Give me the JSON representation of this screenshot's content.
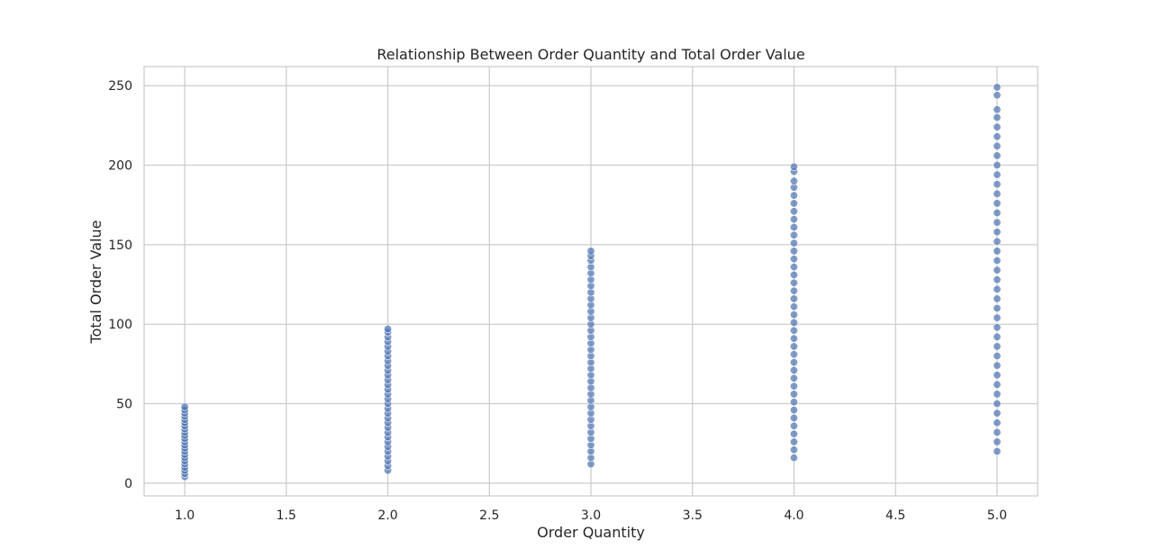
{
  "chart_data": {
    "type": "scatter",
    "title": "Relationship Between Order Quantity and Total Order Value",
    "xlabel": "Order Quantity",
    "ylabel": "Total Order Value",
    "xlim": [
      0.8,
      5.2
    ],
    "ylim": [
      -8,
      262
    ],
    "x_ticks": [
      1.0,
      1.5,
      2.0,
      2.5,
      3.0,
      3.5,
      4.0,
      4.5,
      5.0
    ],
    "x_tick_labels": [
      "1.0",
      "1.5",
      "2.0",
      "2.5",
      "3.0",
      "3.5",
      "4.0",
      "4.5",
      "5.0"
    ],
    "y_ticks": [
      0,
      50,
      100,
      150,
      200,
      250
    ],
    "y_tick_labels": [
      "0",
      "50",
      "100",
      "150",
      "200",
      "250"
    ],
    "grid": true,
    "marker_color": "#4c72b0",
    "marker_alpha": 0.7,
    "points": [
      {
        "x": 1,
        "y": 4
      },
      {
        "x": 1,
        "y": 6
      },
      {
        "x": 1,
        "y": 8
      },
      {
        "x": 1,
        "y": 10
      },
      {
        "x": 1,
        "y": 12
      },
      {
        "x": 1,
        "y": 14
      },
      {
        "x": 1,
        "y": 16
      },
      {
        "x": 1,
        "y": 18
      },
      {
        "x": 1,
        "y": 20
      },
      {
        "x": 1,
        "y": 22
      },
      {
        "x": 1,
        "y": 24
      },
      {
        "x": 1,
        "y": 26
      },
      {
        "x": 1,
        "y": 28
      },
      {
        "x": 1,
        "y": 30
      },
      {
        "x": 1,
        "y": 32
      },
      {
        "x": 1,
        "y": 34
      },
      {
        "x": 1,
        "y": 36
      },
      {
        "x": 1,
        "y": 38
      },
      {
        "x": 1,
        "y": 40
      },
      {
        "x": 1,
        "y": 42
      },
      {
        "x": 1,
        "y": 44
      },
      {
        "x": 1,
        "y": 46
      },
      {
        "x": 1,
        "y": 48
      },
      {
        "x": 2,
        "y": 8
      },
      {
        "x": 2,
        "y": 11
      },
      {
        "x": 2,
        "y": 14
      },
      {
        "x": 2,
        "y": 17
      },
      {
        "x": 2,
        "y": 20
      },
      {
        "x": 2,
        "y": 23
      },
      {
        "x": 2,
        "y": 26
      },
      {
        "x": 2,
        "y": 29
      },
      {
        "x": 2,
        "y": 32
      },
      {
        "x": 2,
        "y": 35
      },
      {
        "x": 2,
        "y": 38
      },
      {
        "x": 2,
        "y": 41
      },
      {
        "x": 2,
        "y": 44
      },
      {
        "x": 2,
        "y": 47
      },
      {
        "x": 2,
        "y": 50
      },
      {
        "x": 2,
        "y": 53
      },
      {
        "x": 2,
        "y": 56
      },
      {
        "x": 2,
        "y": 59
      },
      {
        "x": 2,
        "y": 62
      },
      {
        "x": 2,
        "y": 65
      },
      {
        "x": 2,
        "y": 68
      },
      {
        "x": 2,
        "y": 71
      },
      {
        "x": 2,
        "y": 74
      },
      {
        "x": 2,
        "y": 77
      },
      {
        "x": 2,
        "y": 80
      },
      {
        "x": 2,
        "y": 83
      },
      {
        "x": 2,
        "y": 86
      },
      {
        "x": 2,
        "y": 89
      },
      {
        "x": 2,
        "y": 92
      },
      {
        "x": 2,
        "y": 95
      },
      {
        "x": 2,
        "y": 97
      },
      {
        "x": 3,
        "y": 12
      },
      {
        "x": 3,
        "y": 16
      },
      {
        "x": 3,
        "y": 20
      },
      {
        "x": 3,
        "y": 24
      },
      {
        "x": 3,
        "y": 28
      },
      {
        "x": 3,
        "y": 32
      },
      {
        "x": 3,
        "y": 36
      },
      {
        "x": 3,
        "y": 40
      },
      {
        "x": 3,
        "y": 44
      },
      {
        "x": 3,
        "y": 48
      },
      {
        "x": 3,
        "y": 52
      },
      {
        "x": 3,
        "y": 56
      },
      {
        "x": 3,
        "y": 60
      },
      {
        "x": 3,
        "y": 64
      },
      {
        "x": 3,
        "y": 68
      },
      {
        "x": 3,
        "y": 72
      },
      {
        "x": 3,
        "y": 76
      },
      {
        "x": 3,
        "y": 80
      },
      {
        "x": 3,
        "y": 84
      },
      {
        "x": 3,
        "y": 88
      },
      {
        "x": 3,
        "y": 92
      },
      {
        "x": 3,
        "y": 96
      },
      {
        "x": 3,
        "y": 100
      },
      {
        "x": 3,
        "y": 104
      },
      {
        "x": 3,
        "y": 108
      },
      {
        "x": 3,
        "y": 112
      },
      {
        "x": 3,
        "y": 116
      },
      {
        "x": 3,
        "y": 120
      },
      {
        "x": 3,
        "y": 124
      },
      {
        "x": 3,
        "y": 128
      },
      {
        "x": 3,
        "y": 132
      },
      {
        "x": 3,
        "y": 136
      },
      {
        "x": 3,
        "y": 140
      },
      {
        "x": 3,
        "y": 143
      },
      {
        "x": 3,
        "y": 146
      },
      {
        "x": 4,
        "y": 16
      },
      {
        "x": 4,
        "y": 21
      },
      {
        "x": 4,
        "y": 26
      },
      {
        "x": 4,
        "y": 31
      },
      {
        "x": 4,
        "y": 36
      },
      {
        "x": 4,
        "y": 41
      },
      {
        "x": 4,
        "y": 46
      },
      {
        "x": 4,
        "y": 51
      },
      {
        "x": 4,
        "y": 56
      },
      {
        "x": 4,
        "y": 61
      },
      {
        "x": 4,
        "y": 66
      },
      {
        "x": 4,
        "y": 71
      },
      {
        "x": 4,
        "y": 76
      },
      {
        "x": 4,
        "y": 81
      },
      {
        "x": 4,
        "y": 86
      },
      {
        "x": 4,
        "y": 91
      },
      {
        "x": 4,
        "y": 96
      },
      {
        "x": 4,
        "y": 101
      },
      {
        "x": 4,
        "y": 106
      },
      {
        "x": 4,
        "y": 111
      },
      {
        "x": 4,
        "y": 116
      },
      {
        "x": 4,
        "y": 121
      },
      {
        "x": 4,
        "y": 126
      },
      {
        "x": 4,
        "y": 131
      },
      {
        "x": 4,
        "y": 136
      },
      {
        "x": 4,
        "y": 141
      },
      {
        "x": 4,
        "y": 146
      },
      {
        "x": 4,
        "y": 151
      },
      {
        "x": 4,
        "y": 156
      },
      {
        "x": 4,
        "y": 161
      },
      {
        "x": 4,
        "y": 166
      },
      {
        "x": 4,
        "y": 171
      },
      {
        "x": 4,
        "y": 176
      },
      {
        "x": 4,
        "y": 181
      },
      {
        "x": 4,
        "y": 186
      },
      {
        "x": 4,
        "y": 190
      },
      {
        "x": 4,
        "y": 196
      },
      {
        "x": 4,
        "y": 199
      },
      {
        "x": 5,
        "y": 20
      },
      {
        "x": 5,
        "y": 26
      },
      {
        "x": 5,
        "y": 32
      },
      {
        "x": 5,
        "y": 38
      },
      {
        "x": 5,
        "y": 44
      },
      {
        "x": 5,
        "y": 50
      },
      {
        "x": 5,
        "y": 56
      },
      {
        "x": 5,
        "y": 62
      },
      {
        "x": 5,
        "y": 68
      },
      {
        "x": 5,
        "y": 74
      },
      {
        "x": 5,
        "y": 80
      },
      {
        "x": 5,
        "y": 86
      },
      {
        "x": 5,
        "y": 92
      },
      {
        "x": 5,
        "y": 98
      },
      {
        "x": 5,
        "y": 104
      },
      {
        "x": 5,
        "y": 110
      },
      {
        "x": 5,
        "y": 116
      },
      {
        "x": 5,
        "y": 122
      },
      {
        "x": 5,
        "y": 128
      },
      {
        "x": 5,
        "y": 134
      },
      {
        "x": 5,
        "y": 140
      },
      {
        "x": 5,
        "y": 146
      },
      {
        "x": 5,
        "y": 152
      },
      {
        "x": 5,
        "y": 158
      },
      {
        "x": 5,
        "y": 164
      },
      {
        "x": 5,
        "y": 170
      },
      {
        "x": 5,
        "y": 176
      },
      {
        "x": 5,
        "y": 182
      },
      {
        "x": 5,
        "y": 188
      },
      {
        "x": 5,
        "y": 194
      },
      {
        "x": 5,
        "y": 200
      },
      {
        "x": 5,
        "y": 206
      },
      {
        "x": 5,
        "y": 212
      },
      {
        "x": 5,
        "y": 218
      },
      {
        "x": 5,
        "y": 224
      },
      {
        "x": 5,
        "y": 230
      },
      {
        "x": 5,
        "y": 235
      },
      {
        "x": 5,
        "y": 244
      },
      {
        "x": 5,
        "y": 249
      }
    ]
  }
}
